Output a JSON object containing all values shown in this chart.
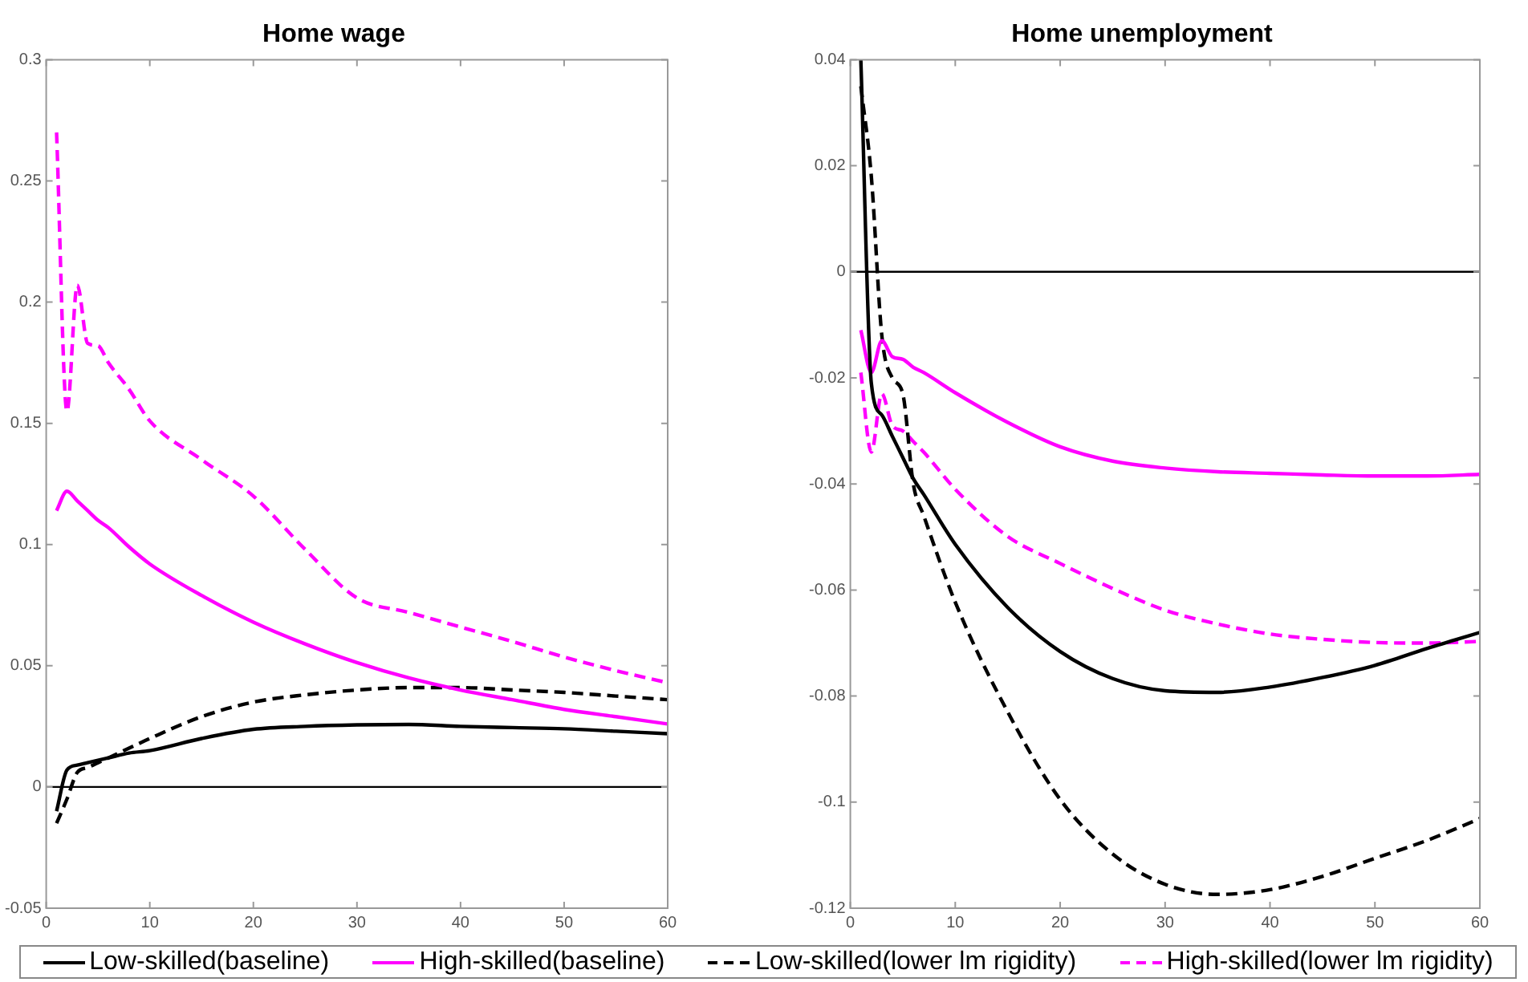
{
  "chart_data": [
    {
      "type": "line",
      "title": "Home wage",
      "xlim": [
        0,
        60
      ],
      "xticks": [
        0,
        10,
        20,
        30,
        40,
        50,
        60
      ],
      "ylim": [
        -0.05,
        0.3
      ],
      "yticks": [
        -0.05,
        0,
        0.05,
        0.1,
        0.15,
        0.2,
        0.25,
        0.3
      ],
      "grid": false,
      "legend": "bottom",
      "marker": "none",
      "x": [
        1,
        2,
        3,
        4,
        5,
        6,
        8,
        10,
        15,
        20,
        25,
        30,
        35,
        40,
        45,
        50,
        55,
        60
      ],
      "ref_lines": [
        {
          "axis": "y",
          "value": 0,
          "color": "#000000"
        }
      ],
      "series": [
        {
          "name": "Low-skilled(baseline)",
          "color": "#000000",
          "line_style": "solid",
          "values": [
            -0.01,
            0.007,
            0.009,
            0.01,
            0.011,
            0.012,
            0.014,
            0.015,
            0.02,
            0.0238,
            0.025,
            0.0256,
            0.0258,
            0.025,
            0.0245,
            0.024,
            0.023,
            0.022
          ]
        },
        {
          "name": "High-skilled(baseline)",
          "color": "#ff00ff",
          "line_style": "solid",
          "values": [
            0.114,
            0.122,
            0.118,
            0.114,
            0.11,
            0.107,
            0.099,
            0.092,
            0.079,
            0.068,
            0.059,
            0.0513,
            0.045,
            0.04,
            0.036,
            0.032,
            0.029,
            0.026
          ]
        },
        {
          "name": "Low-skilled(lower lm rigidity)",
          "color": "#000000",
          "line_style": "dashed",
          "values": [
            -0.015,
            -0.005,
            0.006,
            0.008,
            0.01,
            0.012,
            0.016,
            0.02,
            0.029,
            0.035,
            0.038,
            0.04,
            0.041,
            0.041,
            0.04,
            0.039,
            0.0375,
            0.036
          ]
        },
        {
          "name": "High-skilled(lower lm rigidity)",
          "color": "#ff00ff",
          "line_style": "dashed",
          "values": [
            0.27,
            0.155,
            0.207,
            0.183,
            0.182,
            0.175,
            0.164,
            0.151,
            0.135,
            0.12,
            0.098,
            0.078,
            0.072,
            0.066,
            0.06,
            0.0536,
            0.048,
            0.043
          ]
        }
      ]
    },
    {
      "type": "line",
      "title": "Home unemployment",
      "xlim": [
        0,
        60
      ],
      "xticks": [
        0,
        10,
        20,
        30,
        40,
        50,
        60
      ],
      "ylim": [
        -0.12,
        0.04
      ],
      "yticks": [
        -0.12,
        -0.1,
        -0.08,
        -0.06,
        -0.04,
        -0.02,
        0,
        0.02,
        0.04
      ],
      "grid": false,
      "marker": "none",
      "x": [
        1,
        2,
        3,
        4,
        5,
        6,
        7,
        10,
        15,
        20,
        25,
        30,
        35,
        40,
        45,
        50,
        55,
        60
      ],
      "ref_lines": [
        {
          "axis": "y",
          "value": 0,
          "color": "#000000"
        }
      ],
      "series": [
        {
          "color": "#000000",
          "line_style": "solid",
          "values": [
            0.04,
            -0.021,
            -0.027,
            -0.031,
            -0.035,
            -0.039,
            -0.042,
            -0.0514,
            -0.0633,
            -0.0716,
            -0.0767,
            -0.079,
            -0.0793,
            -0.0783,
            -0.0765,
            -0.0742,
            -0.071,
            -0.068
          ]
        },
        {
          "color": "#ff00ff",
          "line_style": "solid",
          "values": [
            -0.011,
            -0.019,
            -0.013,
            -0.016,
            -0.0165,
            -0.018,
            -0.019,
            -0.0228,
            -0.0284,
            -0.033,
            -0.0357,
            -0.037,
            -0.0377,
            -0.038,
            -0.0383,
            -0.0385,
            -0.0385,
            -0.0382
          ]
        },
        {
          "color": "#000000",
          "line_style": "dashed",
          "values": [
            0.035,
            0.018,
            -0.012,
            -0.02,
            -0.023,
            -0.04,
            -0.046,
            -0.0623,
            -0.083,
            -0.0995,
            -0.1098,
            -0.1155,
            -0.1174,
            -0.1165,
            -0.114,
            -0.1106,
            -0.1072,
            -0.1031
          ]
        },
        {
          "color": "#ff00ff",
          "line_style": "dashed",
          "values": [
            -0.019,
            -0.034,
            -0.023,
            -0.029,
            -0.03,
            -0.032,
            -0.034,
            -0.041,
            -0.0499,
            -0.055,
            -0.0597,
            -0.0638,
            -0.0664,
            -0.0683,
            -0.0693,
            -0.0699,
            -0.07,
            -0.0697
          ]
        }
      ]
    }
  ]
}
